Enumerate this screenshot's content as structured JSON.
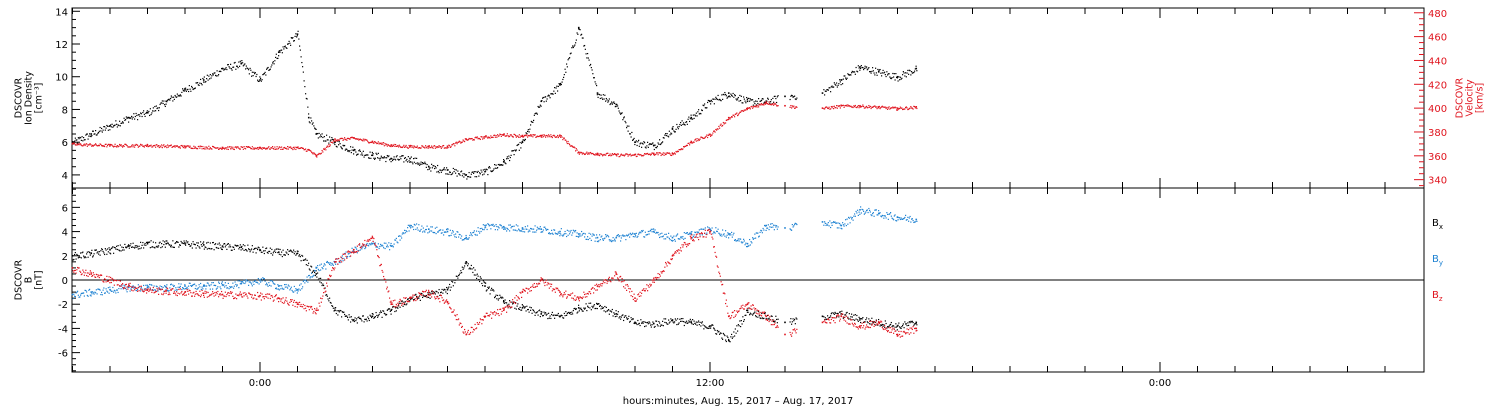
{
  "chart_data": [
    {
      "type": "scatter",
      "panel": "top",
      "ylabel_left": [
        "DSCOVR",
        "Ion Density",
        "[cm⁻³]"
      ],
      "ylabel_right": [
        "DSCOVR",
        "Velocity",
        "[km/s]"
      ],
      "ylim_left": [
        3.2,
        14.2
      ],
      "yticks_left": [
        "4",
        "6",
        "8",
        "10",
        "12",
        "14"
      ],
      "ylim_right": [
        333,
        484
      ],
      "yticks_right": [
        "340",
        "360",
        "380",
        "400",
        "420",
        "440",
        "460",
        "480"
      ],
      "series": [
        {
          "name": "",
          "axis": "left",
          "color": "#000000",
          "x": [
            -5.0,
            -4.5,
            -4.0,
            -3.5,
            -3.0,
            -2.5,
            -2.0,
            -1.5,
            -1.0,
            -0.5,
            0.0,
            0.5,
            1.0,
            1.3,
            1.5,
            2.0,
            2.5,
            3.0,
            3.5,
            4.0,
            4.5,
            5.0,
            5.5,
            6.0,
            6.5,
            7.0,
            7.5,
            8.0,
            8.5,
            9.0,
            9.5,
            10.0,
            10.5,
            11.0,
            11.5,
            12.0,
            12.5,
            13.0,
            13.5,
            14.0,
            15.0,
            15.5,
            16.0,
            16.5,
            17.0,
            17.5
          ],
          "y": [
            6.0,
            6.5,
            7.0,
            7.5,
            7.8,
            8.5,
            9.2,
            9.8,
            10.5,
            10.8,
            9.8,
            11.5,
            12.6,
            7.5,
            6.5,
            6.0,
            5.5,
            5.2,
            5.0,
            5.0,
            4.5,
            4.3,
            4.0,
            4.2,
            4.8,
            6.0,
            8.5,
            9.5,
            13.0,
            9.0,
            8.3,
            6.0,
            5.8,
            6.8,
            7.5,
            8.5,
            9.0,
            8.5,
            8.5,
            8.8,
            9.0,
            9.8,
            10.6,
            10.3,
            10.0,
            10.5
          ]
        },
        {
          "name": "",
          "axis": "right",
          "color": "#e0141e",
          "x": [
            -5.0,
            -4.0,
            -3.0,
            -2.0,
            -1.0,
            0.0,
            1.0,
            1.3,
            1.5,
            2.0,
            2.5,
            3.0,
            3.5,
            4.0,
            4.5,
            5.0,
            5.5,
            6.0,
            6.5,
            7.0,
            7.5,
            8.0,
            8.5,
            9.0,
            9.5,
            10.0,
            10.5,
            11.0,
            11.5,
            12.0,
            12.5,
            13.0,
            13.5,
            14.0,
            15.0,
            15.5,
            16.0,
            16.5,
            17.0,
            17.5
          ],
          "y": [
            370,
            369,
            369,
            368,
            367,
            367,
            367,
            365,
            360,
            374,
            375,
            372,
            369,
            368,
            368,
            368,
            374,
            376,
            378,
            377,
            377,
            377,
            363,
            362,
            361,
            361,
            362,
            362,
            372,
            378,
            392,
            400,
            405,
            402,
            400,
            402,
            402,
            401,
            400,
            401
          ]
        }
      ]
    },
    {
      "type": "scatter",
      "panel": "bottom",
      "ylabel_left": [
        "DSCOVR",
        "B",
        "[nT]"
      ],
      "ylim": [
        -7.6,
        7.6
      ],
      "yticks": [
        "-6",
        "-4",
        "-2",
        "0",
        "2",
        "4",
        "6"
      ],
      "zero_line": true,
      "legend": [
        "B",
        "B",
        "B"
      ],
      "legend_subscripts": [
        "x",
        "y",
        "z"
      ],
      "series": [
        {
          "name": "Bx",
          "color": "#000000",
          "x": [
            -5.0,
            -4.5,
            -4.0,
            -3.5,
            -3.0,
            -2.5,
            -2.0,
            -1.5,
            -1.0,
            -0.5,
            0.0,
            0.5,
            1.0,
            1.5,
            2.0,
            2.5,
            3.0,
            3.5,
            4.0,
            4.5,
            5.0,
            5.5,
            6.0,
            6.5,
            7.0,
            7.5,
            8.0,
            8.5,
            9.0,
            9.5,
            10.0,
            10.5,
            11.0,
            11.5,
            12.0,
            12.5,
            13.0,
            13.5,
            14.0,
            15.0,
            15.5,
            16.0,
            16.5,
            17.0,
            17.5
          ],
          "y": [
            2.0,
            2.2,
            2.5,
            2.8,
            3.0,
            3.0,
            3.0,
            2.9,
            2.8,
            2.7,
            2.5,
            2.3,
            2.2,
            0.5,
            -2.5,
            -3.3,
            -3.0,
            -2.5,
            -1.5,
            -1.2,
            -0.8,
            1.5,
            -0.5,
            -1.8,
            -2.3,
            -2.8,
            -3.0,
            -2.3,
            -2.0,
            -2.8,
            -3.5,
            -3.6,
            -3.3,
            -3.5,
            -3.8,
            -5.0,
            -2.5,
            -3.0,
            -3.5,
            -3.0,
            -2.8,
            -3.2,
            -3.5,
            -3.8,
            -3.5
          ]
        },
        {
          "name": "By",
          "color": "#1e82d2",
          "x": [
            -5.0,
            -4.5,
            -4.0,
            -3.5,
            -3.0,
            -2.5,
            -2.0,
            -1.5,
            -1.0,
            -0.5,
            0.0,
            0.5,
            1.0,
            1.5,
            2.0,
            2.5,
            3.0,
            3.5,
            4.0,
            4.5,
            5.0,
            5.5,
            6.0,
            6.5,
            7.0,
            7.5,
            8.0,
            8.5,
            9.0,
            9.5,
            10.0,
            10.5,
            11.0,
            11.5,
            12.0,
            12.5,
            13.0,
            13.5,
            14.0,
            15.0,
            15.5,
            16.0,
            16.5,
            17.0,
            17.5
          ],
          "y": [
            -1.2,
            -1.0,
            -0.8,
            -0.6,
            -0.6,
            -0.6,
            -0.5,
            -0.5,
            -0.4,
            -0.3,
            0.0,
            -0.5,
            -0.8,
            1.0,
            1.5,
            2.5,
            3.0,
            2.8,
            4.5,
            4.2,
            4.0,
            3.5,
            4.5,
            4.4,
            4.3,
            4.2,
            4.0,
            3.8,
            3.5,
            3.5,
            3.8,
            4.0,
            3.5,
            3.8,
            4.2,
            3.8,
            3.0,
            4.5,
            4.3,
            4.8,
            4.5,
            5.8,
            5.5,
            5.2,
            5.0
          ]
        },
        {
          "name": "Bz",
          "color": "#e0141e",
          "x": [
            -5.0,
            -4.5,
            -4.0,
            -3.5,
            -3.0,
            -2.5,
            -2.0,
            -1.5,
            -1.0,
            -0.5,
            0.0,
            0.5,
            1.0,
            1.5,
            2.0,
            2.5,
            3.0,
            3.5,
            4.0,
            4.5,
            5.0,
            5.5,
            6.0,
            6.5,
            7.0,
            7.5,
            8.0,
            8.5,
            9.0,
            9.5,
            10.0,
            10.5,
            11.0,
            11.5,
            12.0,
            12.5,
            13.0,
            13.5,
            14.0,
            15.0,
            15.5,
            16.0,
            16.5,
            17.0,
            17.5
          ],
          "y": [
            1.0,
            0.5,
            0.0,
            -0.5,
            -0.8,
            -0.9,
            -1.0,
            -1.1,
            -1.2,
            -1.2,
            -1.3,
            -1.5,
            -2.0,
            -2.5,
            1.5,
            2.5,
            3.5,
            -2.0,
            -1.5,
            -1.0,
            -1.8,
            -4.5,
            -3.0,
            -2.5,
            -1.0,
            0.0,
            -1.0,
            -1.5,
            -0.5,
            0.5,
            -1.5,
            0.0,
            2.0,
            3.5,
            4.0,
            -3.0,
            -2.0,
            -3.0,
            -4.5,
            -3.5,
            -3.0,
            -3.8,
            -3.5,
            -4.5,
            -4.0
          ]
        }
      ]
    }
  ],
  "x_axis": {
    "tick_labels": [
      "0:00",
      "12:00",
      "0:00"
    ],
    "label": "hours:minutes, Aug. 15, 2017 – Aug. 17, 2017"
  }
}
